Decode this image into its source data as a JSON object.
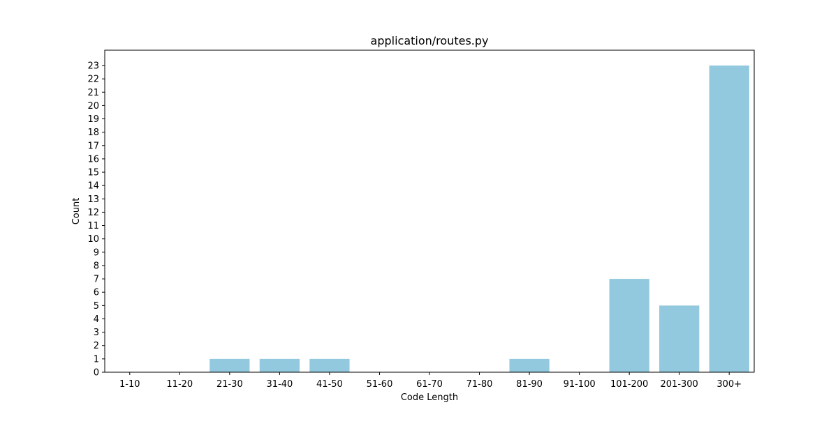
{
  "chart_data": {
    "type": "bar",
    "title": "application/routes.py",
    "xlabel": "Code Length",
    "ylabel": "Count",
    "categories": [
      "1-10",
      "11-20",
      "21-30",
      "31-40",
      "41-50",
      "51-60",
      "61-70",
      "71-80",
      "81-90",
      "91-100",
      "101-200",
      "201-300",
      "300+"
    ],
    "values": [
      0,
      0,
      1,
      1,
      1,
      0,
      0,
      0,
      1,
      0,
      7,
      5,
      23
    ],
    "ylim": [
      0,
      24.15
    ],
    "yticks": [
      0,
      1,
      2,
      3,
      4,
      5,
      6,
      7,
      8,
      9,
      10,
      11,
      12,
      13,
      14,
      15,
      16,
      17,
      18,
      19,
      20,
      21,
      22,
      23
    ],
    "grid": false,
    "bar_color": "#92c9de"
  }
}
